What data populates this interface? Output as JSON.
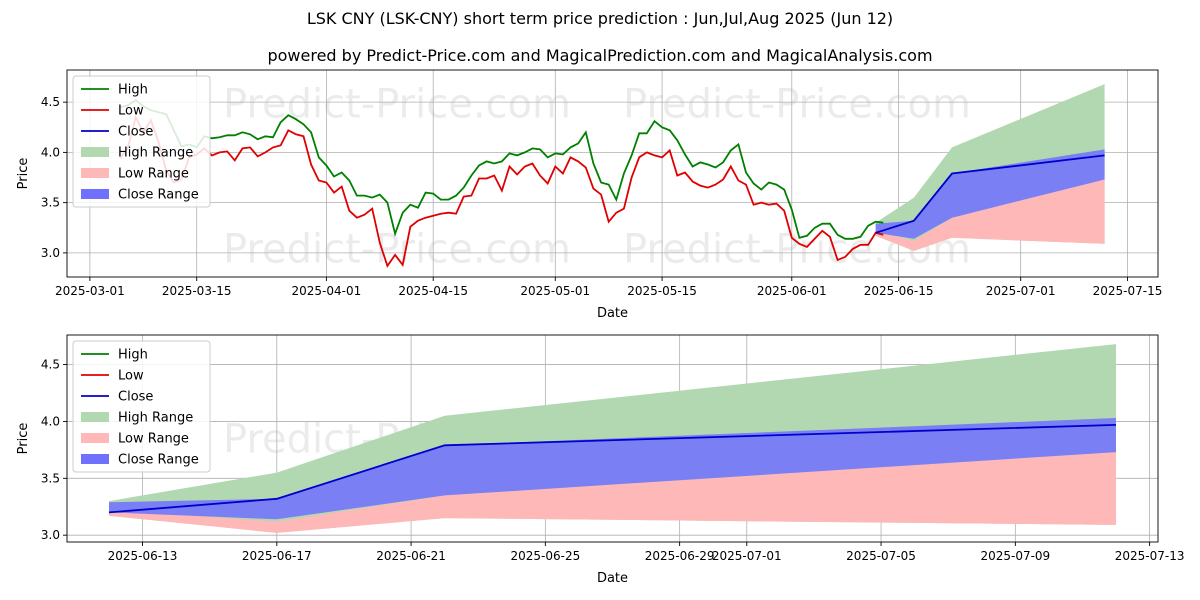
{
  "title": "LSK CNY (LSK-CNY) short term price prediction : Jun,Jul,Aug 2025 (Jun 12)",
  "subtitle": "powered by Predict-Price.com and MagicalPrediction.com and MagicalAnalysis.com",
  "watermark": "Predict-Price.com",
  "colors": {
    "high": "#008000",
    "low": "#e00000",
    "close": "#0000cc",
    "high_range": "#b2d8b2",
    "low_range": "#ffb8b8",
    "close_range": "#7070ff"
  },
  "chart_data": [
    {
      "type": "line",
      "title": "history and prediction",
      "xlabel": "Date",
      "ylabel": "Price",
      "xlim": [
        "2025-02-26",
        "2025-07-19"
      ],
      "ylim": [
        2.76,
        4.82
      ],
      "yticks": [
        3.0,
        3.5,
        4.0,
        4.5
      ],
      "ytick_labels": [
        "3.0",
        "3.5",
        "4.0",
        "4.5"
      ],
      "xticks": [
        "2025-03-01",
        "2025-03-15",
        "2025-04-01",
        "2025-04-15",
        "2025-05-01",
        "2025-05-15",
        "2025-06-01",
        "2025-06-15",
        "2025-07-01",
        "2025-07-15"
      ],
      "xtick_labels": [
        "2025-03-01",
        "2025-03-15",
        "2025-04-01",
        "2025-04-15",
        "2025-05-01",
        "2025-05-15",
        "2025-06-01",
        "2025-06-15",
        "2025-07-01",
        "2025-07-15"
      ],
      "grid": true,
      "legend": {
        "position": "top-left",
        "entries": [
          "High",
          "Low",
          "Close",
          "High Range",
          "Low Range",
          "Close Range"
        ]
      },
      "history": {
        "start": "2025-03-05",
        "high": [
          4.45,
          4.47,
          4.52,
          4.46,
          4.42,
          4.4,
          4.38,
          4.22,
          4.06,
          4.08,
          4.05,
          4.16,
          4.14,
          4.15,
          4.17,
          4.17,
          4.2,
          4.18,
          4.13,
          4.16,
          4.15,
          4.3,
          4.37,
          4.33,
          4.28,
          4.2,
          3.95,
          3.87,
          3.76,
          3.8,
          3.72,
          3.57,
          3.57,
          3.55,
          3.58,
          3.5,
          3.19,
          3.4,
          3.48,
          3.45,
          3.6,
          3.59,
          3.53,
          3.53,
          3.57,
          3.65,
          3.77,
          3.87,
          3.91,
          3.89,
          3.91,
          3.99,
          3.97,
          4.0,
          4.04,
          4.03,
          3.95,
          3.99,
          3.98,
          4.05,
          4.09,
          4.2,
          3.89,
          3.7,
          3.68,
          3.53,
          3.79,
          3.97,
          4.19,
          4.19,
          4.31,
          4.25,
          4.22,
          4.12,
          3.98,
          3.86,
          3.9,
          3.88,
          3.85,
          3.9,
          4.02,
          4.08,
          3.8,
          3.69,
          3.63,
          3.7,
          3.68,
          3.63,
          3.43,
          3.15,
          3.17,
          3.25,
          3.29,
          3.29,
          3.18,
          3.14,
          3.14,
          3.16,
          3.27,
          3.31,
          3.3
        ],
        "low": [
          3.94,
          4.05,
          4.35,
          4.2,
          4.32,
          4.1,
          3.82,
          3.7,
          3.73,
          3.95,
          3.98,
          4.04,
          3.97,
          4.0,
          4.01,
          3.92,
          4.04,
          4.05,
          3.96,
          4.0,
          4.05,
          4.07,
          4.22,
          4.18,
          4.16,
          3.88,
          3.72,
          3.7,
          3.6,
          3.66,
          3.42,
          3.35,
          3.38,
          3.44,
          3.1,
          2.87,
          2.98,
          2.88,
          3.26,
          3.32,
          3.35,
          3.37,
          3.39,
          3.4,
          3.39,
          3.56,
          3.57,
          3.74,
          3.74,
          3.77,
          3.62,
          3.86,
          3.78,
          3.86,
          3.89,
          3.77,
          3.69,
          3.86,
          3.79,
          3.95,
          3.91,
          3.85,
          3.64,
          3.58,
          3.31,
          3.4,
          3.44,
          3.75,
          3.95,
          4.0,
          3.97,
          3.95,
          4.02,
          3.77,
          3.8,
          3.71,
          3.67,
          3.65,
          3.68,
          3.73,
          3.86,
          3.72,
          3.68,
          3.48,
          3.5,
          3.48,
          3.49,
          3.42,
          3.15,
          3.09,
          3.06,
          3.14,
          3.22,
          3.16,
          2.93,
          2.96,
          3.04,
          3.08,
          3.08,
          3.2,
          3.18
        ]
      },
      "prediction": {
        "dates": [
          "2025-06-12",
          "2025-06-17",
          "2025-06-22",
          "2025-07-12"
        ],
        "close": [
          3.2,
          3.32,
          3.79,
          3.97
        ],
        "high_range": {
          "upper": [
            3.3,
            3.55,
            4.05,
            4.68
          ],
          "lower": [
            3.17,
            3.02,
            3.15,
            3.09
          ]
        },
        "low_range": {
          "upper": [
            3.22,
            3.12,
            3.35,
            3.73
          ],
          "lower": [
            3.17,
            3.02,
            3.15,
            3.09
          ]
        },
        "close_range": {
          "upper": [
            3.29,
            3.32,
            3.79,
            4.03
          ],
          "lower": [
            3.2,
            3.14,
            3.35,
            3.73
          ]
        }
      }
    },
    {
      "type": "line",
      "title": "prediction detail",
      "xlabel": "Date",
      "ylabel": "Price",
      "xlim": [
        "2025-06-10T18:00",
        "2025-07-13T06:00"
      ],
      "ylim": [
        2.94,
        4.76
      ],
      "yticks": [
        3.0,
        3.5,
        4.0,
        4.5
      ],
      "ytick_labels": [
        "3.0",
        "3.5",
        "4.0",
        "4.5"
      ],
      "xticks": [
        "2025-06-13",
        "2025-06-17",
        "2025-06-21",
        "2025-06-25",
        "2025-06-29",
        "2025-07-01",
        "2025-07-05",
        "2025-07-09",
        "2025-07-13"
      ],
      "xtick_labels": [
        "2025-06-13",
        "2025-06-17",
        "2025-06-21",
        "2025-06-25",
        "2025-06-29",
        "2025-07-01",
        "2025-07-05",
        "2025-07-09",
        "2025-07-13"
      ],
      "grid": true,
      "legend": {
        "position": "top-left",
        "entries": [
          "High",
          "Low",
          "Close",
          "High Range",
          "Low Range",
          "Close Range"
        ]
      },
      "prediction": {
        "dates": [
          "2025-06-12",
          "2025-06-17",
          "2025-06-22",
          "2025-07-12"
        ],
        "close": [
          3.2,
          3.32,
          3.79,
          3.97
        ],
        "high_range": {
          "upper": [
            3.3,
            3.55,
            4.05,
            4.68
          ],
          "lower": [
            3.17,
            3.02,
            3.15,
            3.09
          ]
        },
        "low_range": {
          "upper": [
            3.22,
            3.12,
            3.35,
            3.73
          ],
          "lower": [
            3.17,
            3.02,
            3.15,
            3.09
          ]
        },
        "close_range": {
          "upper": [
            3.29,
            3.32,
            3.79,
            4.03
          ],
          "lower": [
            3.2,
            3.14,
            3.35,
            3.73
          ]
        }
      }
    }
  ]
}
